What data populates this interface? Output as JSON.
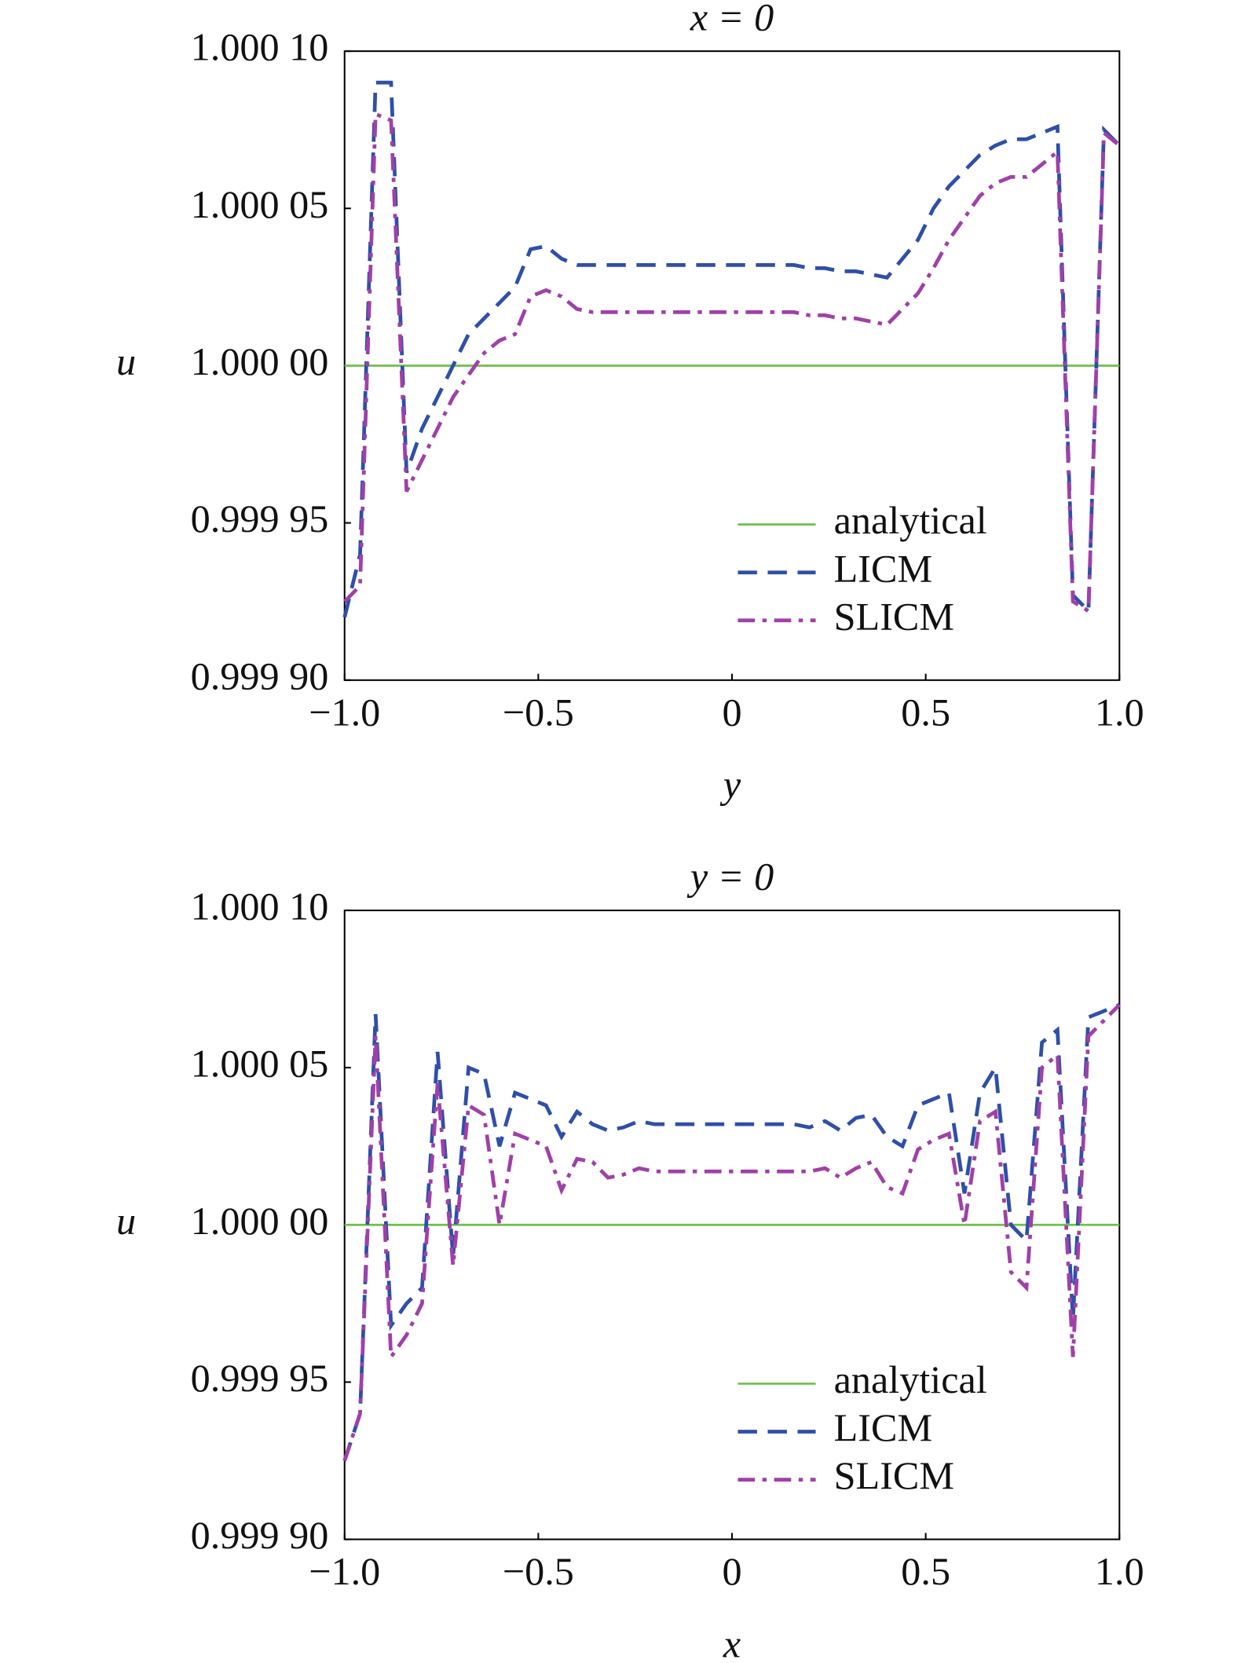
{
  "chart_data": [
    {
      "type": "line",
      "title": "x = 0",
      "xlabel": "y",
      "ylabel": "u",
      "x": [
        -1,
        -0.96,
        -0.92,
        -0.88,
        -0.84,
        -0.8,
        -0.76,
        -0.72,
        -0.68,
        -0.64,
        -0.6,
        -0.56,
        -0.52,
        -0.48,
        -0.44,
        -0.4,
        -0.36,
        -0.32,
        -0.28,
        -0.24,
        -0.2,
        -0.16,
        -0.12,
        -0.08,
        -0.04,
        0,
        0.04,
        0.08,
        0.12,
        0.16,
        0.2,
        0.24,
        0.28,
        0.32,
        0.36,
        0.4,
        0.44,
        0.48,
        0.52,
        0.56,
        0.6,
        0.64,
        0.68,
        0.72,
        0.76,
        0.8,
        0.84,
        0.88,
        0.92,
        0.96,
        1
      ],
      "series": [
        {
          "name": "analytical",
          "color": "#6cc04a",
          "linestyle": "solid",
          "x": [
            -1,
            1
          ],
          "values": [
            1,
            1
          ]
        },
        {
          "name": "LICM",
          "color": "#2f4fa8",
          "linestyle": "dashed",
          "values": [
            0.99992,
            0.99994,
            1.00009,
            1.00009,
            0.999966,
            0.99998,
            0.99999,
            1.0,
            1.00001,
            1.000015,
            1.00002,
            1.000025,
            1.000037,
            1.000038,
            1.000034,
            1.000032,
            1.000032,
            1.000032,
            1.000032,
            1.000032,
            1.000032,
            1.000032,
            1.000032,
            1.000032,
            1.000032,
            1.000032,
            1.000032,
            1.000032,
            1.000032,
            1.000032,
            1.000031,
            1.000031,
            1.00003,
            1.00003,
            1.000029,
            1.000028,
            1.000034,
            1.00004,
            1.00005,
            1.000057,
            1.000062,
            1.000067,
            1.00007,
            1.000072,
            1.000072,
            1.000074,
            1.000076,
            0.999927,
            0.999922,
            1.000075,
            1.00007
          ]
        },
        {
          "name": "SLICM",
          "color": "#a040a8",
          "linestyle": "dashdot",
          "values": [
            0.999925,
            0.99993,
            1.00008,
            1.000078,
            0.99996,
            0.99997,
            0.99998,
            0.99999,
            0.999997,
            1.000004,
            1.000008,
            1.00001,
            1.000022,
            1.000024,
            1.000022,
            1.000018,
            1.000017,
            1.000017,
            1.000017,
            1.000017,
            1.000017,
            1.000017,
            1.000017,
            1.000017,
            1.000017,
            1.000017,
            1.000017,
            1.000017,
            1.000017,
            1.000017,
            1.000016,
            1.000016,
            1.000015,
            1.000015,
            1.000014,
            1.000013,
            1.000018,
            1.000023,
            1.000031,
            1.00004,
            1.000047,
            1.000054,
            1.000058,
            1.00006,
            1.00006,
            1.000064,
            1.000068,
            0.999925,
            0.999922,
            1.000074,
            1.00007
          ]
        }
      ],
      "xlim": [
        -1,
        1
      ],
      "ylim": [
        0.9999,
        1.0001
      ],
      "xticks": [
        {
          "value": -1,
          "label": "−1.0"
        },
        {
          "value": -0.5,
          "label": "−0.5"
        },
        0,
        0.5,
        {
          "value": 1,
          "label": "1.0"
        }
      ],
      "yticks": [
        {
          "value": 0.9999,
          "label": "0.999 90"
        },
        {
          "value": 0.99995,
          "label": "0.999 95"
        },
        {
          "value": 1,
          "label": "1.000 00"
        },
        {
          "value": 1.00005,
          "label": "1.000 05"
        },
        {
          "value": 1.0001,
          "label": "1.000 10"
        }
      ],
      "legend": "lower right"
    },
    {
      "type": "line",
      "title": "y = 0",
      "xlabel": "x",
      "ylabel": "u",
      "x": [
        -1,
        -0.96,
        -0.92,
        -0.88,
        -0.84,
        -0.8,
        -0.76,
        -0.72,
        -0.68,
        -0.64,
        -0.6,
        -0.56,
        -0.52,
        -0.48,
        -0.44,
        -0.4,
        -0.36,
        -0.32,
        -0.28,
        -0.24,
        -0.2,
        -0.16,
        -0.12,
        -0.08,
        -0.04,
        0,
        0.04,
        0.08,
        0.12,
        0.16,
        0.2,
        0.24,
        0.28,
        0.32,
        0.36,
        0.4,
        0.44,
        0.48,
        0.52,
        0.56,
        0.6,
        0.64,
        0.68,
        0.72,
        0.76,
        0.8,
        0.84,
        0.88,
        0.92,
        0.96,
        1
      ],
      "series": [
        {
          "name": "analytical",
          "color": "#6cc04a",
          "linestyle": "solid",
          "x": [
            -1,
            1
          ],
          "values": [
            1,
            1
          ]
        },
        {
          "name": "LICM",
          "color": "#2f4fa8",
          "linestyle": "dashed",
          "values": [
            0.999925,
            0.99994,
            1.000067,
            0.999968,
            0.999975,
            0.99998,
            1.000055,
            0.99999,
            1.00005,
            1.000048,
            1.000025,
            1.000042,
            1.00004,
            1.000038,
            1.000028,
            1.000036,
            1.000032,
            1.00003,
            1.000031,
            1.000033,
            1.000032,
            1.000032,
            1.000032,
            1.000032,
            1.000032,
            1.000032,
            1.000032,
            1.000032,
            1.000032,
            1.000032,
            1.000031,
            1.000033,
            1.00003,
            1.000034,
            1.000035,
            1.000028,
            1.000025,
            1.000038,
            1.00004,
            1.000042,
            1.00001,
            1.000042,
            1.00005,
            1.0,
            0.999995,
            1.000058,
            1.000062,
            0.99997,
            1.000066,
            1.000068,
            1.00007
          ]
        },
        {
          "name": "SLICM",
          "color": "#a040a8",
          "linestyle": "dashdot",
          "values": [
            0.999925,
            0.99994,
            1.00006,
            0.999958,
            0.999965,
            0.999975,
            1.000045,
            0.999987,
            1.000038,
            1.000035,
            1.0,
            1.000029,
            1.000027,
            1.000025,
            1.000011,
            1.000021,
            1.00002,
            1.000015,
            1.000016,
            1.000018,
            1.000017,
            1.000017,
            1.000017,
            1.000017,
            1.000017,
            1.000017,
            1.000017,
            1.000017,
            1.000017,
            1.000017,
            1.000017,
            1.000018,
            1.000015,
            1.000018,
            1.00002,
            1.000012,
            1.00001,
            1.000024,
            1.000027,
            1.000029,
            1.0,
            1.000033,
            1.000036,
            0.999985,
            0.99998,
            1.00005,
            1.000054,
            0.999958,
            1.00006,
            1.000065,
            1.00007
          ]
        }
      ],
      "xlim": [
        -1,
        1
      ],
      "ylim": [
        0.9999,
        1.0001
      ],
      "xticks": [
        {
          "value": -1,
          "label": "−1.0"
        },
        {
          "value": -0.5,
          "label": "−0.5"
        },
        0,
        0.5,
        {
          "value": 1,
          "label": "1.0"
        }
      ],
      "yticks": [
        {
          "value": 0.9999,
          "label": "0.999 90"
        },
        {
          "value": 0.99995,
          "label": "0.999 95"
        },
        {
          "value": 1,
          "label": "1.000 00"
        },
        {
          "value": 1.00005,
          "label": "1.000 05"
        },
        {
          "value": 1.0001,
          "label": "1.000 10"
        }
      ],
      "legend": "lower right"
    }
  ]
}
